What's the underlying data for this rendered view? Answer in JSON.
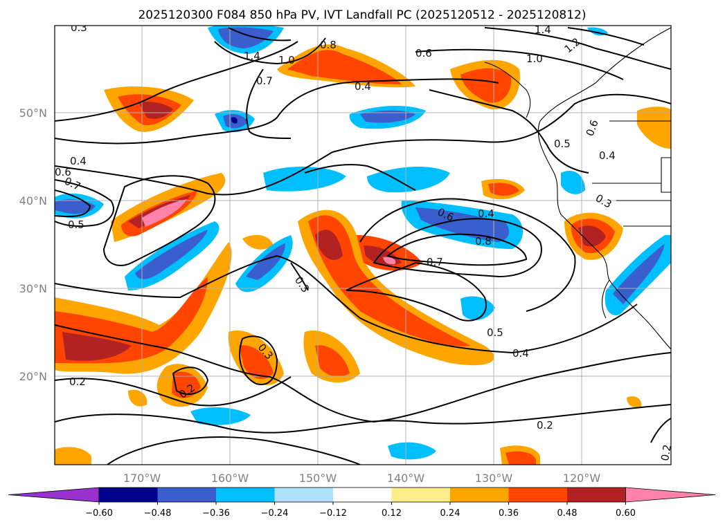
{
  "title": "2025120300 F084 850 hPa PV, IVT Landfall PC (2025120512 - 2025120812)",
  "latitude_labels": [
    "50°N",
    "40°N",
    "30°N",
    "20°N"
  ],
  "longitude_labels": [
    "170°W",
    "160°W",
    "150°W",
    "140°W",
    "130°W",
    "120°W"
  ],
  "contour_labels": [
    "0.3",
    "1.4",
    "1.2",
    "1.0",
    "0.8",
    "1.4",
    "1.0",
    "0.7",
    "0.6",
    "0.4",
    "0.6",
    "0.5",
    "0.4",
    "0.4",
    "0.7",
    "0.5",
    "0.6",
    "0.3",
    "0.6",
    "0.4",
    "0.8",
    "0.7",
    "0.5",
    "0.4",
    "0.3",
    "0.3",
    "0.2",
    "0.2",
    "0.2",
    "0.2"
  ],
  "colorbar": {
    "ticks": [
      "−0.60",
      "−0.48",
      "−0.36",
      "−0.24",
      "−0.12",
      "0.12",
      "0.24",
      "0.36",
      "0.48",
      "0.60"
    ],
    "colors": [
      "#9932cc",
      "#00008b",
      "#3a5fcd",
      "#00bfff",
      "#b0e2ff",
      "#ffffff",
      "#ffec8b",
      "#ffa500",
      "#ff4500",
      "#b22222",
      "#ff82ab"
    ]
  },
  "map": {
    "lon_range": [
      "180°W",
      "110°W"
    ],
    "lat_range": [
      "10°N",
      "60°N"
    ],
    "field": "850 hPa PV (shaded)",
    "contours": "IVT Landfall PC (black lines)",
    "grid": true
  }
}
